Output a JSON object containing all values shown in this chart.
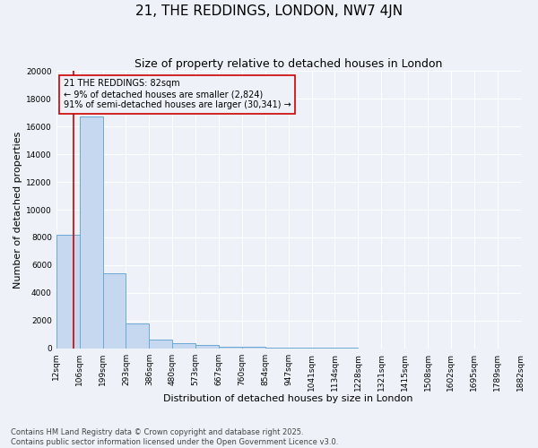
{
  "title": "21, THE REDDINGS, LONDON, NW7 4JN",
  "subtitle": "Size of property relative to detached houses in London",
  "xlabel": "Distribution of detached houses by size in London",
  "ylabel": "Number of detached properties",
  "bar_values": [
    8200,
    16700,
    5400,
    1800,
    650,
    350,
    220,
    140,
    90,
    65,
    50,
    38,
    28,
    20,
    14,
    10,
    7,
    5,
    3,
    2
  ],
  "xtick_labels": [
    "12sqm",
    "106sqm",
    "199sqm",
    "293sqm",
    "386sqm",
    "480sqm",
    "573sqm",
    "667sqm",
    "760sqm",
    "854sqm",
    "947sqm",
    "1041sqm",
    "1134sqm",
    "1228sqm",
    "1321sqm",
    "1415sqm",
    "1508sqm",
    "1602sqm",
    "1695sqm",
    "1789sqm",
    "1882sqm"
  ],
  "bar_color": "#c5d8f0",
  "bar_edge_color": "#6aaad4",
  "ylim": [
    0,
    20000
  ],
  "yticks": [
    0,
    2000,
    4000,
    6000,
    8000,
    10000,
    12000,
    14000,
    16000,
    18000,
    20000
  ],
  "vline_x_bar_index": 0.74,
  "property_line_color": "#cc0000",
  "annotation_text": "21 THE REDDINGS: 82sqm\n← 9% of detached houses are smaller (2,824)\n91% of semi-detached houses are larger (30,341) →",
  "annotation_box_color": "#cc0000",
  "footer_text": "Contains HM Land Registry data © Crown copyright and database right 2025.\nContains public sector information licensed under the Open Government Licence v3.0.",
  "title_fontsize": 11,
  "subtitle_fontsize": 9,
  "axis_label_fontsize": 8,
  "tick_fontsize": 6.5,
  "annotation_fontsize": 7,
  "footer_fontsize": 6,
  "background_color": "#eef2f8",
  "grid_color": "#ffffff"
}
